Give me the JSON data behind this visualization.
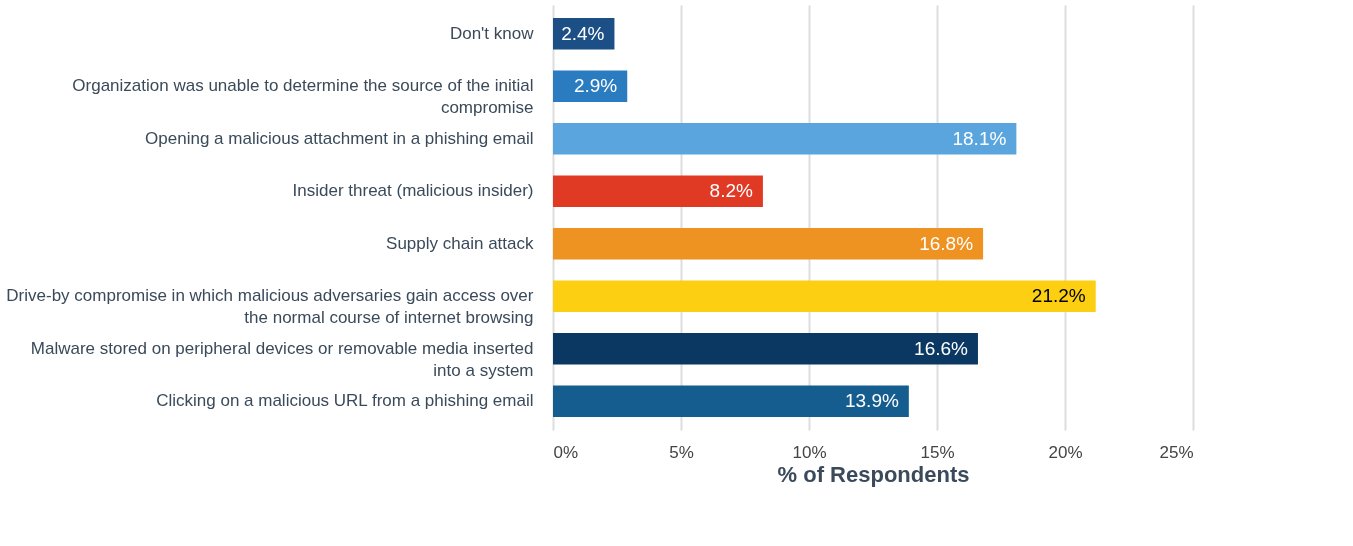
{
  "chart_data": {
    "type": "bar",
    "orientation": "horizontal",
    "xlabel": "% of Respondents",
    "categories": [
      "Don't know",
      "Organization was unable to determine the source of the initial compromise",
      "Opening a malicious attachment in a phishing email",
      "Insider threat (malicious insider)",
      "Supply chain attack",
      "Drive-by compromise in which malicious adversaries gain access over the normal course of internet browsing",
      "Malware stored on peripheral devices or removable media inserted into a system",
      "Clicking on a malicious URL from a phishing email"
    ],
    "values": [
      2.4,
      2.9,
      18.1,
      8.2,
      16.8,
      21.2,
      16.6,
      13.9
    ],
    "colors": [
      "#1b4f86",
      "#2a7bc0",
      "#5aa5dd",
      "#e03a24",
      "#ee9322",
      "#fccf12",
      "#0b3862",
      "#155d8f"
    ],
    "value_labels": [
      "2.4%",
      "2.9%",
      "18.1%",
      "8.2%",
      "16.8%",
      "21.2%",
      "16.6%",
      "13.9%"
    ],
    "xlim": [
      0,
      25
    ],
    "xticks": [
      {
        "value": 0,
        "label": "0%"
      },
      {
        "value": 5,
        "label": "5%"
      },
      {
        "value": 10,
        "label": "10%"
      },
      {
        "value": 15,
        "label": "15%"
      },
      {
        "value": 20,
        "label": "20%"
      },
      {
        "value": 25,
        "label": "25%"
      }
    ],
    "grid": "x"
  }
}
